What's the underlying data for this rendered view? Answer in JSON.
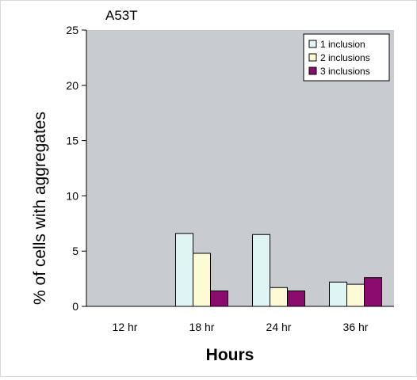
{
  "chart_data": {
    "type": "bar",
    "title": "A53T",
    "xlabel": "Hours",
    "ylabel": "% of cells with aggregates",
    "categories": [
      "12 hr",
      "18 hr",
      "24 hr",
      "36 hr"
    ],
    "ylim": [
      0,
      25
    ],
    "yticks": [
      0,
      5,
      10,
      15,
      20,
      25
    ],
    "grid": false,
    "plot_background": "#c8ccd0",
    "legend_position": "top-right",
    "series": [
      {
        "name": "1 inclusion",
        "color": "#dff5f4",
        "values": [
          0,
          6.6,
          6.5,
          2.2
        ]
      },
      {
        "name": "2 inclusions",
        "color": "#fdfbd6",
        "values": [
          0,
          4.8,
          1.7,
          2.0
        ]
      },
      {
        "name": "3 inclusions",
        "color": "#8a0a6e",
        "values": [
          0,
          1.4,
          1.4,
          2.6
        ]
      }
    ]
  }
}
